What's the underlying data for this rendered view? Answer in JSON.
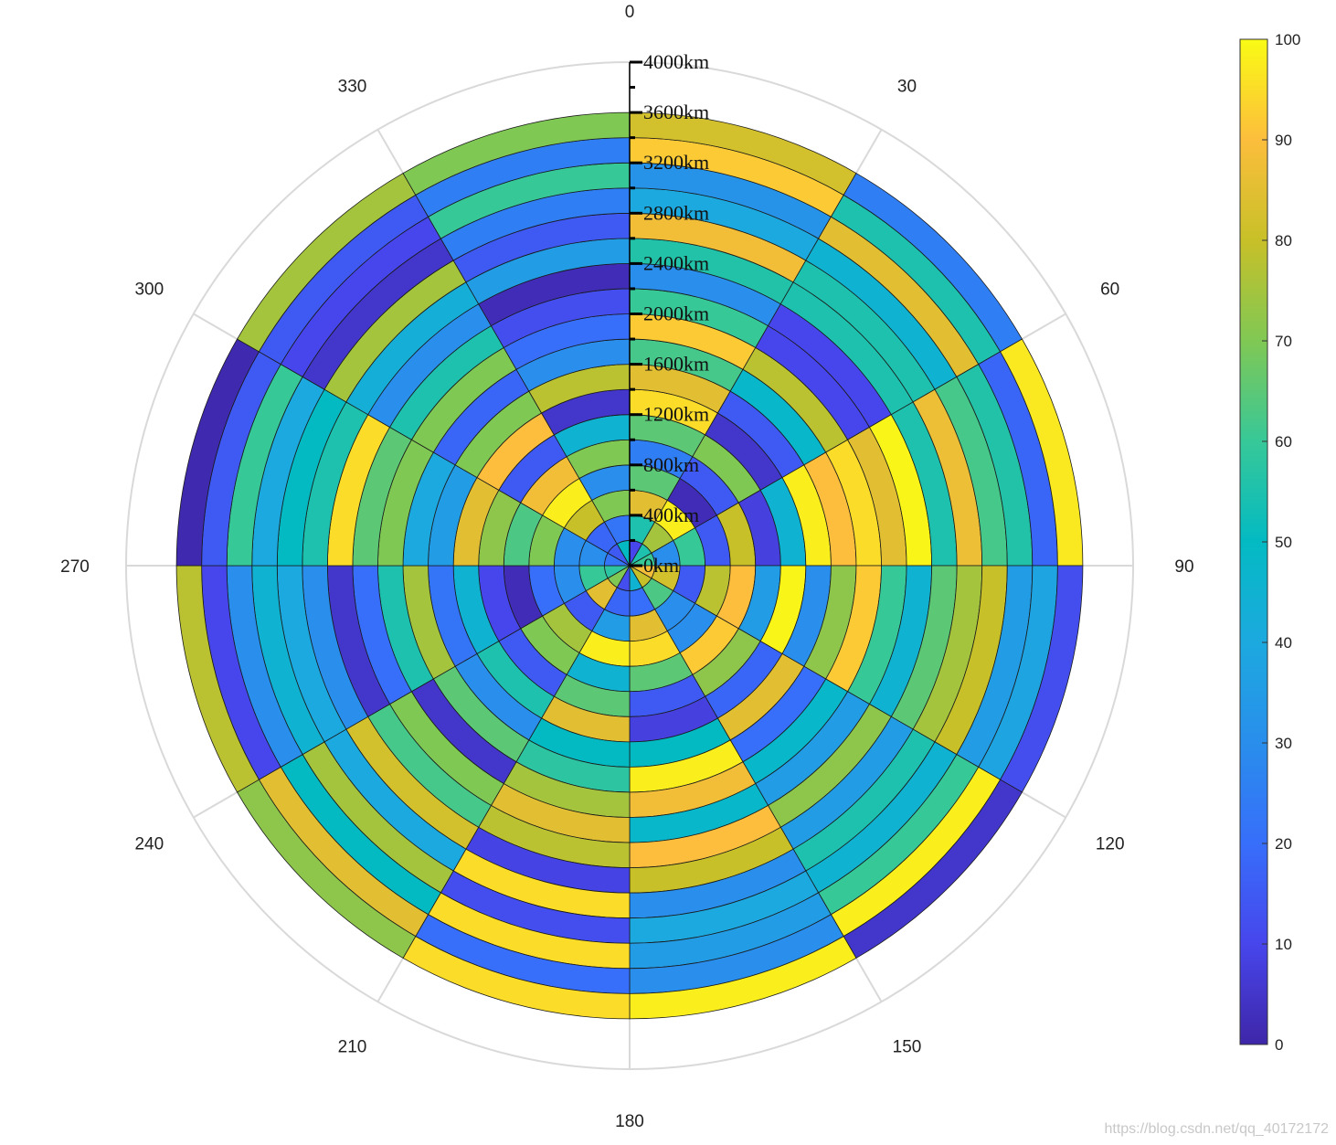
{
  "chart_data": {
    "type": "heatmap",
    "subtype": "polar",
    "theta_labels": [
      "0",
      "30",
      "60",
      "90",
      "120",
      "150",
      "180",
      "210",
      "240",
      "270",
      "300",
      "330"
    ],
    "r_labels": [
      "0km",
      "400km",
      "800km",
      "1200km",
      "1600km",
      "2000km",
      "2400km",
      "2800km",
      "3200km",
      "3600km",
      "4000km"
    ],
    "r_lim": [
      0,
      4000
    ],
    "r_edges": [
      0,
      200,
      400,
      600,
      800,
      1000,
      1200,
      1400,
      1600,
      1800,
      2000,
      2200,
      2400,
      2600,
      2800,
      3000,
      3200,
      3400,
      3600
    ],
    "theta_edges_deg": [
      0,
      30,
      60,
      90,
      120,
      150,
      180,
      210,
      240,
      270,
      300,
      330,
      360
    ],
    "colorbar": {
      "min": 0,
      "max": 100,
      "ticks": [
        "0",
        "10",
        "20",
        "30",
        "40",
        "50",
        "60",
        "70",
        "80",
        "90",
        "100"
      ]
    },
    "grid": true,
    "colormap": "parula",
    "values": [
      [
        10,
        55,
        85,
        65,
        25,
        65,
        95,
        85,
        62,
        92,
        60,
        30,
        56,
        88,
        40,
        32,
        92,
        82
      ],
      [
        55,
        75,
        98,
        2,
        15,
        70,
        5,
        15,
        48,
        78,
        10,
        10,
        55,
        55,
        45,
        85,
        55,
        25
      ],
      [
        60,
        30,
        60,
        15,
        80,
        8,
        45,
        98,
        90,
        95,
        85,
        99,
        55,
        87,
        62,
        56,
        18,
        97
      ],
      [
        88,
        82,
        15,
        78,
        90,
        35,
        99,
        30,
        72,
        92,
        60,
        45,
        65,
        75,
        80,
        35,
        38,
        12
      ],
      [
        80,
        63,
        30,
        30,
        92,
        72,
        18,
        85,
        20,
        48,
        35,
        72,
        35,
        55,
        45,
        60,
        98,
        5
      ],
      [
        45,
        20,
        85,
        95,
        65,
        15,
        8,
        50,
        98,
        88,
        48,
        90,
        80,
        30,
        40,
        35,
        30,
        98
      ],
      [
        12,
        18,
        35,
        98,
        45,
        65,
        85,
        50,
        58,
        75,
        85,
        78,
        9,
        95,
        12,
        95,
        20,
        95
      ],
      [
        70,
        85,
        15,
        75,
        70,
        15,
        55,
        30,
        65,
        5,
        70,
        62,
        82,
        40,
        75,
        50,
        85,
        72
      ],
      [
        58,
        60,
        30,
        20,
        2,
        10,
        45,
        22,
        75,
        55,
        20,
        5,
        30,
        40,
        45,
        30,
        10,
        78
      ],
      [
        22,
        30,
        30,
        70,
        63,
        72,
        85,
        35,
        40,
        70,
        65,
        95,
        55,
        50,
        40,
        60,
        15,
        1
      ],
      [
        15,
        18,
        80,
        98,
        88,
        15,
        90,
        70,
        18,
        70,
        55,
        30,
        43,
        75,
        5,
        10,
        15,
        75
      ],
      [
        50,
        22,
        70,
        30,
        70,
        45,
        5,
        78,
        30,
        20,
        12,
        2,
        35,
        15,
        25,
        60,
        25,
        70
      ]
    ]
  },
  "watermark": "https://blog.csdn.net/qq_40172172"
}
